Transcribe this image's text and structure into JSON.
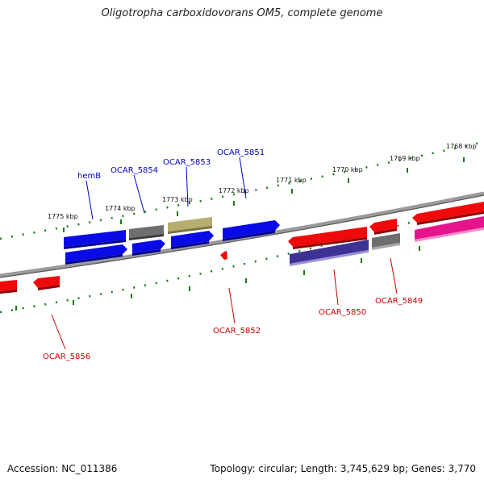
{
  "title": "Oligotropha carboxidovorans OM5, complete genome",
  "footer": {
    "accession": "Accession: NC_011386",
    "topology": "Topology: circular; Length: 3,745,629 bp; Genes: 3,770"
  },
  "colors": {
    "backbone": "#888888",
    "tick": "#1a7a1a",
    "label_top": "#0000cc",
    "label_bottom": "#cc0000",
    "blue": "#0a0ae6",
    "grey": "#6e6e6e",
    "olive": "#b5ae6e",
    "red": "#ee0a0a",
    "navy": "#3c3296",
    "magenta": "#e6148c"
  },
  "kbp_labels": [
    "1775 kbp",
    "1774 kbp",
    "1773 kbp",
    "1772 kbp",
    "1771 kbp",
    "1770 kbp",
    "1769 kbp",
    "1768 kbp"
  ],
  "gene_labels_top": [
    "hemB",
    "OCAR_5854",
    "OCAR_5853",
    "OCAR_5851"
  ],
  "gene_labels_bottom": [
    "OCAR_5856",
    "OCAR_5852",
    "OCAR_5850",
    "OCAR_5849"
  ]
}
